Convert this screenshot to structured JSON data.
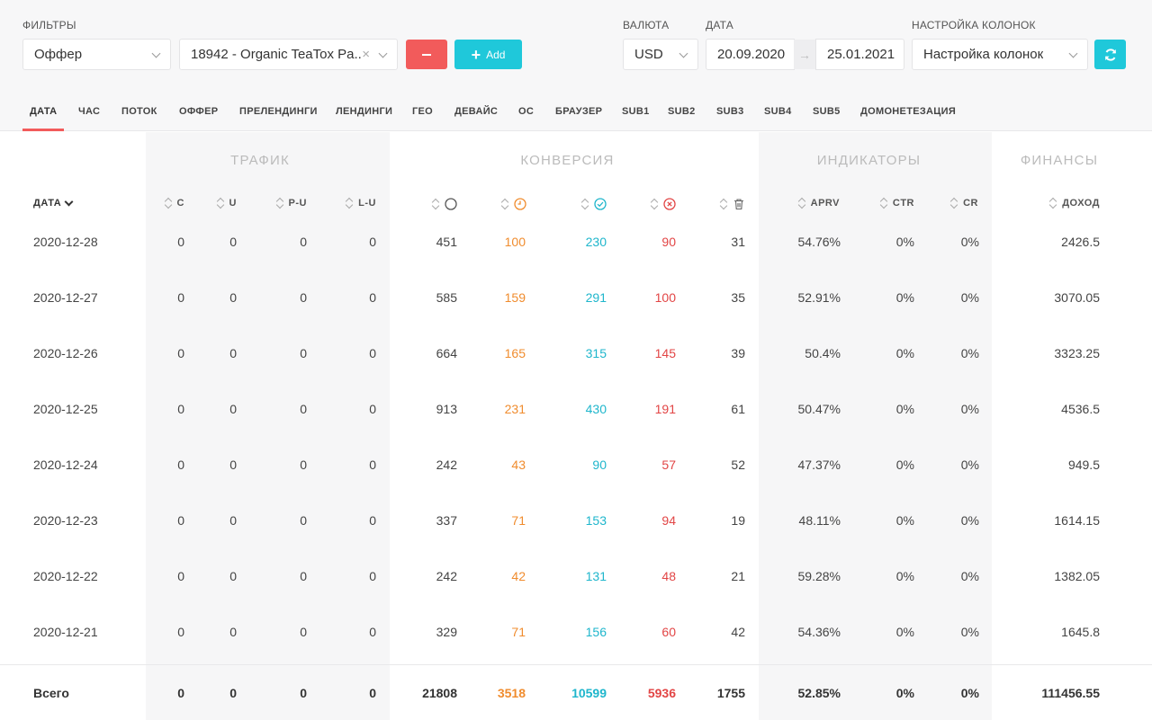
{
  "filters": {
    "label": "ФИЛЬТРЫ",
    "field_select": "Оффер",
    "offer_select": "18942 - Organic TeaTox Pa...",
    "add_label": "Add"
  },
  "currency": {
    "label": "ВАЛЮТА",
    "value": "USD"
  },
  "date": {
    "label": "ДАТА",
    "from": "20.09.2020",
    "to": "25.01.2021"
  },
  "columns_setting": {
    "label": "НАСТРОЙКА КОЛОНОК",
    "value": "Настройка колонок"
  },
  "tabs": [
    "ДАТА",
    "ЧАС",
    "ПОТОК",
    "ОФФЕР",
    "ПРЕЛЕНДИНГИ",
    "ЛЕНДИНГИ",
    "ГЕО",
    "ДЕВАЙС",
    "ОС",
    "БРАУЗЕР",
    "SUB1",
    "SUB2",
    "SUB3",
    "SUB4",
    "SUB5",
    "ДОМОНЕТЕЗАЦИЯ"
  ],
  "groups": {
    "traffic": "ТРАФИК",
    "conversion": "КОНВЕРСИЯ",
    "indicators": "ИНДИКАТОРЫ",
    "finance": "ФИНАНСЫ"
  },
  "headers": {
    "date": "ДАТА",
    "c": "C",
    "u": "U",
    "pu": "P-U",
    "lu": "L-U",
    "aprv": "APRV",
    "ctr": "CTR",
    "cr": "CR",
    "income": "ДОХОД"
  },
  "icons": {
    "all": "circle-icon",
    "pending": "clock-icon",
    "approved": "check-circle-icon",
    "rejected": "x-circle-icon",
    "trash": "trash-icon",
    "refresh": "refresh-icon"
  },
  "colors": {
    "orange": "#f08c2e",
    "blue": "#1fb6cc",
    "red": "#e24545",
    "accent": "#1fc8da"
  },
  "rows": [
    [
      "2020-12-28",
      "0",
      "0",
      "0",
      "0",
      "451",
      "100",
      "230",
      "90",
      "31",
      "54.76%",
      "0%",
      "0%",
      "2426.5"
    ],
    [
      "2020-12-27",
      "0",
      "0",
      "0",
      "0",
      "585",
      "159",
      "291",
      "100",
      "35",
      "52.91%",
      "0%",
      "0%",
      "3070.05"
    ],
    [
      "2020-12-26",
      "0",
      "0",
      "0",
      "0",
      "664",
      "165",
      "315",
      "145",
      "39",
      "50.4%",
      "0%",
      "0%",
      "3323.25"
    ],
    [
      "2020-12-25",
      "0",
      "0",
      "0",
      "0",
      "913",
      "231",
      "430",
      "191",
      "61",
      "50.47%",
      "0%",
      "0%",
      "4536.5"
    ],
    [
      "2020-12-24",
      "0",
      "0",
      "0",
      "0",
      "242",
      "43",
      "90",
      "57",
      "52",
      "47.37%",
      "0%",
      "0%",
      "949.5"
    ],
    [
      "2020-12-23",
      "0",
      "0",
      "0",
      "0",
      "337",
      "71",
      "153",
      "94",
      "19",
      "48.11%",
      "0%",
      "0%",
      "1614.15"
    ],
    [
      "2020-12-22",
      "0",
      "0",
      "0",
      "0",
      "242",
      "42",
      "131",
      "48",
      "21",
      "59.28%",
      "0%",
      "0%",
      "1382.05"
    ],
    [
      "2020-12-21",
      "0",
      "0",
      "0",
      "0",
      "329",
      "71",
      "156",
      "60",
      "42",
      "54.36%",
      "0%",
      "0%",
      "1645.8"
    ]
  ],
  "total": [
    "Всего",
    "0",
    "0",
    "0",
    "0",
    "21808",
    "3518",
    "10599",
    "5936",
    "1755",
    "52.85%",
    "0%",
    "0%",
    "111456.55"
  ]
}
